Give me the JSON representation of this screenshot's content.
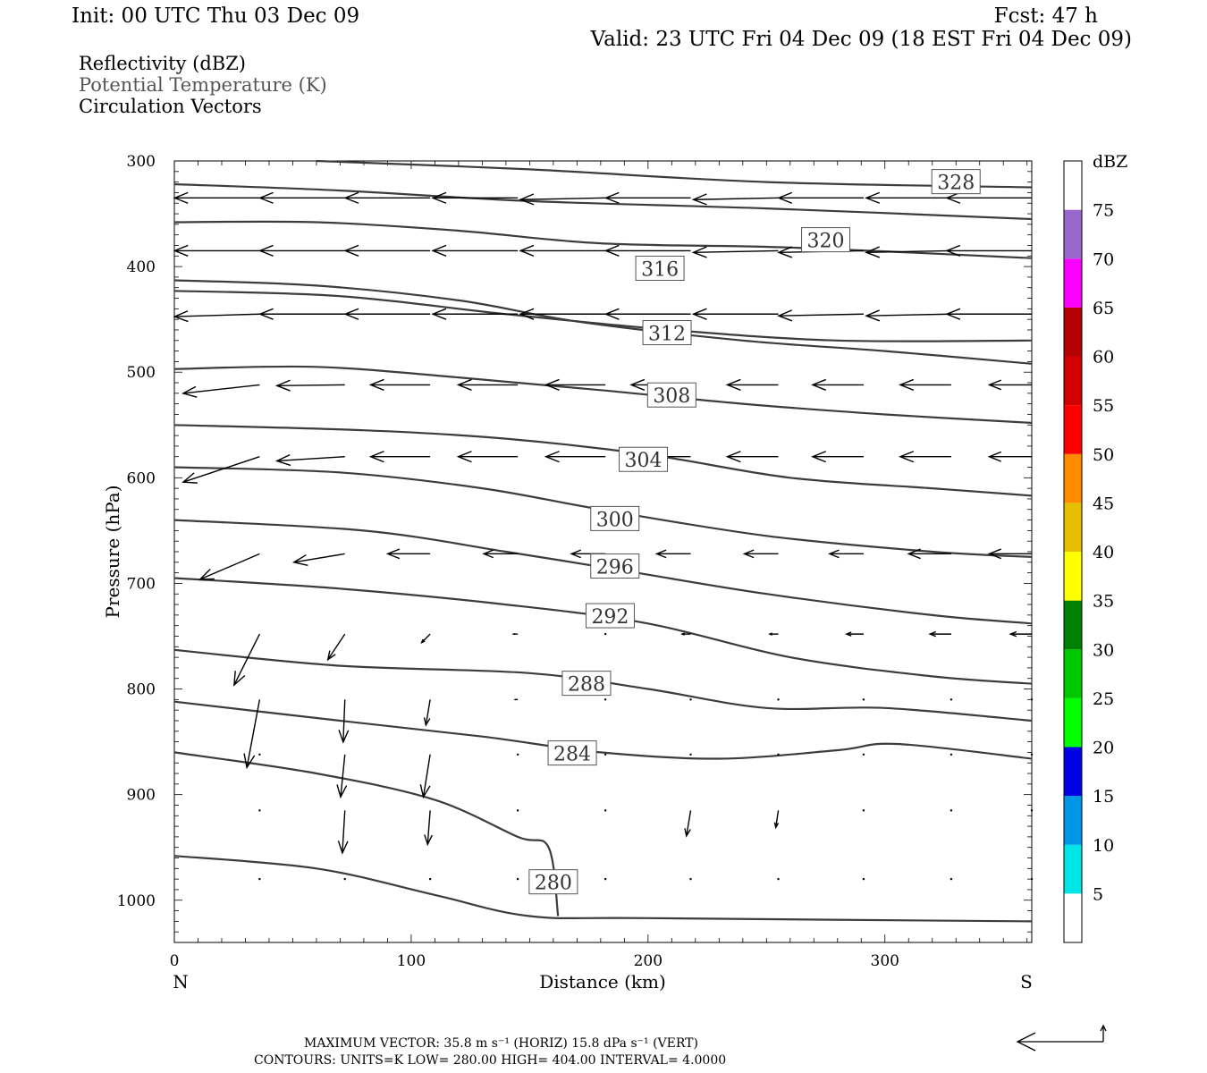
{
  "header": {
    "init": "Init: 00 UTC Thu 03 Dec 09",
    "fcst": "Fcst:   47 h",
    "valid": "Valid: 23 UTC Fri 04 Dec 09 (18 EST Fri 04 Dec 09)",
    "fields": [
      "Reflectivity (dBZ)",
      "Potential Temperature (K)",
      "Circulation Vectors"
    ]
  },
  "footer": {
    "max_vector": "MAXIMUM VECTOR:  35.8 m s⁻¹ (HORIZ)          15.8 dPa s⁻¹ (VERT)",
    "contours": "CONTOURS:  UNITS=K  LOW=  280.00        HIGH=  404.00        INTERVAL=    4.0000"
  },
  "colors": {
    "contour": "#3c3c3c",
    "vector": "#000000"
  },
  "chart_data": {
    "type": "cross-section",
    "xlabel": "Distance (km)",
    "ylabel": "Pressure (hPa)",
    "xlim": [
      0,
      362
    ],
    "ylim": [
      300,
      1040
    ],
    "x_ticks": [
      0,
      100,
      200,
      300
    ],
    "y_ticks": [
      300,
      400,
      500,
      600,
      700,
      800,
      900,
      1000
    ],
    "x_end_labels": {
      "left": "N",
      "right": "S"
    },
    "contours": [
      {
        "level": "328",
        "label_at": [
          330,
          320
        ],
        "points": [
          [
            60,
            300
          ],
          [
            150,
            308
          ],
          [
            250,
            320
          ],
          [
            362,
            325
          ]
        ]
      },
      {
        "level": "324",
        "label_at": null,
        "points": [
          [
            0,
            322
          ],
          [
            70,
            328
          ],
          [
            150,
            338
          ],
          [
            250,
            345
          ],
          [
            362,
            355
          ]
        ]
      },
      {
        "level": "320",
        "label_at": [
          275,
          375
        ],
        "points": [
          [
            0,
            358
          ],
          [
            60,
            358
          ],
          [
            120,
            366
          ],
          [
            180,
            378
          ],
          [
            260,
            382
          ],
          [
            362,
            392
          ]
        ]
      },
      {
        "level": "316",
        "label_at": [
          205,
          402
        ],
        "points": [
          [
            0,
            413
          ],
          [
            60,
            418
          ],
          [
            120,
            432
          ],
          [
            170,
            452
          ],
          [
            240,
            470
          ],
          [
            300,
            480
          ],
          [
            362,
            492
          ]
        ]
      },
      {
        "level": "312",
        "label_at": [
          208,
          463
        ],
        "points": [
          [
            0,
            423
          ],
          [
            70,
            428
          ],
          [
            140,
            445
          ],
          [
            210,
            460
          ],
          [
            280,
            470
          ],
          [
            362,
            470
          ]
        ]
      },
      {
        "level": "308",
        "label_at": [
          210,
          522
        ],
        "points": [
          [
            0,
            497
          ],
          [
            60,
            495
          ],
          [
            120,
            505
          ],
          [
            180,
            517
          ],
          [
            240,
            530
          ],
          [
            300,
            540
          ],
          [
            362,
            548
          ]
        ]
      },
      {
        "level": "304",
        "label_at": [
          198,
          583
        ],
        "points": [
          [
            0,
            550
          ],
          [
            80,
            555
          ],
          [
            140,
            563
          ],
          [
            200,
            578
          ],
          [
            260,
            600
          ],
          [
            320,
            610
          ],
          [
            362,
            617
          ]
        ]
      },
      {
        "level": "300",
        "label_at": [
          186,
          639
        ],
        "points": [
          [
            0,
            590
          ],
          [
            70,
            595
          ],
          [
            130,
            610
          ],
          [
            180,
            630
          ],
          [
            250,
            655
          ],
          [
            320,
            670
          ],
          [
            362,
            675
          ]
        ]
      },
      {
        "level": "296",
        "label_at": [
          186,
          684
        ],
        "points": [
          [
            0,
            640
          ],
          [
            80,
            650
          ],
          [
            140,
            670
          ],
          [
            190,
            688
          ],
          [
            250,
            710
          ],
          [
            320,
            730
          ],
          [
            362,
            738
          ]
        ]
      },
      {
        "level": "292",
        "label_at": [
          184,
          731
        ],
        "points": [
          [
            0,
            695
          ],
          [
            70,
            705
          ],
          [
            140,
            720
          ],
          [
            200,
            738
          ],
          [
            260,
            770
          ],
          [
            320,
            788
          ],
          [
            362,
            795
          ]
        ]
      },
      {
        "level": "288",
        "label_at": [
          174,
          795
        ],
        "points": [
          [
            0,
            763
          ],
          [
            70,
            778
          ],
          [
            150,
            785
          ],
          [
            200,
            800
          ],
          [
            250,
            818
          ],
          [
            300,
            818
          ],
          [
            362,
            830
          ]
        ]
      },
      {
        "level": "284",
        "label_at": [
          168,
          861
        ],
        "points": [
          [
            0,
            812
          ],
          [
            70,
            830
          ],
          [
            130,
            845
          ],
          [
            180,
            860
          ],
          [
            230,
            866
          ],
          [
            280,
            858
          ],
          [
            305,
            852
          ],
          [
            362,
            866
          ]
        ]
      },
      {
        "level": "280",
        "label_at": [
          160,
          983
        ],
        "points": [
          [
            0,
            958
          ],
          [
            60,
            970
          ],
          [
            110,
            995
          ],
          [
            150,
            1015
          ],
          [
            200,
            1017
          ],
          [
            362,
            1020
          ]
        ]
      },
      {
        "level": "280-branch",
        "label_at": null,
        "points": [
          [
            0,
            860
          ],
          [
            60,
            880
          ],
          [
            110,
            905
          ],
          [
            145,
            940
          ],
          [
            158,
            950
          ],
          [
            162,
            1015
          ]
        ]
      }
    ],
    "vectors": [
      {
        "p": 335,
        "x": [
          36,
          72,
          108,
          145,
          182,
          218,
          255,
          291,
          328,
          362
        ],
        "u": [
          -1,
          -1,
          -1,
          -1,
          -1,
          -1,
          -1,
          -1,
          -1,
          -1
        ],
        "w": [
          0,
          0,
          0,
          0,
          0.02,
          0,
          0.02,
          0,
          0,
          0
        ]
      },
      {
        "p": 385,
        "x": [
          36,
          72,
          108,
          145,
          182,
          218,
          255,
          291,
          328,
          362
        ],
        "u": [
          -1,
          -1,
          -1,
          -1,
          -1,
          -1,
          -1,
          -1,
          -1,
          -1
        ],
        "w": [
          0,
          0,
          0,
          0,
          0,
          0,
          0.02,
          0.02,
          0.02,
          0
        ]
      },
      {
        "p": 445,
        "x": [
          36,
          72,
          108,
          145,
          182,
          218,
          255,
          291,
          328,
          362
        ],
        "u": [
          -1,
          -1,
          -1,
          -1,
          -1,
          -1,
          -1,
          -1,
          -1,
          -1
        ],
        "w": [
          0.03,
          0,
          0,
          0,
          0,
          0,
          0,
          0.02,
          0.02,
          0
        ]
      },
      {
        "p": 512,
        "x": [
          36,
          72,
          108,
          145,
          182,
          218,
          255,
          291,
          328,
          362
        ],
        "u": [
          -0.9,
          -0.8,
          -0.7,
          -0.7,
          -0.7,
          -0.7,
          -0.6,
          -0.6,
          -0.6,
          -0.5
        ],
        "w": [
          0.1,
          0.01,
          0,
          0,
          0,
          0,
          0,
          0,
          0,
          0
        ]
      },
      {
        "p": 580,
        "x": [
          36,
          72,
          108,
          145,
          182,
          218,
          255,
          291,
          328,
          362
        ],
        "u": [
          -0.9,
          -0.8,
          -0.7,
          -0.7,
          -0.7,
          -0.6,
          -0.6,
          -0.6,
          -0.6,
          -0.5
        ],
        "w": [
          0.3,
          0.05,
          0,
          0,
          0,
          0,
          0,
          0,
          0,
          0
        ]
      },
      {
        "p": 672,
        "x": [
          36,
          72,
          108,
          145,
          182,
          218,
          255,
          291,
          328,
          362
        ],
        "u": [
          -0.7,
          -0.6,
          -0.5,
          -0.4,
          -0.4,
          -0.4,
          -0.4,
          -0.4,
          -0.5,
          -0.5
        ],
        "w": [
          0.3,
          0.1,
          0,
          0,
          0,
          0,
          0,
          0,
          0,
          0
        ]
      },
      {
        "p": 748,
        "x": [
          36,
          72,
          108,
          145,
          182,
          218,
          255,
          291,
          328,
          362
        ],
        "u": [
          -0.3,
          -0.2,
          -0.1,
          -0.05,
          -0.02,
          -0.1,
          -0.1,
          -0.2,
          -0.25,
          -0.25
        ],
        "w": [
          0.6,
          0.3,
          0.1,
          0,
          0,
          0,
          0,
          0,
          0,
          0
        ]
      },
      {
        "p": 810,
        "x": [
          36,
          72,
          108,
          145,
          182,
          218,
          255,
          291,
          328,
          362
        ],
        "u": [
          -0.15,
          -0.02,
          -0.05,
          -0.03,
          0,
          0,
          0,
          0,
          0,
          0
        ],
        "w": [
          0.8,
          0.5,
          0.3,
          0,
          0,
          0,
          0,
          0,
          0,
          0
        ]
      },
      {
        "p": 862,
        "x": [
          36,
          72,
          108,
          145,
          182,
          218,
          255,
          291,
          328,
          362
        ],
        "u": [
          0,
          -0.05,
          -0.08,
          0,
          0,
          0,
          0,
          0,
          0,
          0
        ],
        "w": [
          0,
          0.5,
          0.5,
          0,
          0,
          0,
          0,
          0,
          0,
          0
        ]
      },
      {
        "p": 915,
        "x": [
          36,
          72,
          108,
          145,
          182,
          218,
          255,
          291,
          328,
          362
        ],
        "u": [
          0,
          -0.03,
          -0.03,
          0,
          0,
          -0.05,
          -0.03,
          0,
          0,
          0
        ],
        "w": [
          0,
          0.5,
          0.4,
          0,
          0,
          0.3,
          0.2,
          0,
          0,
          0
        ]
      },
      {
        "p": 980,
        "x": [
          36,
          72,
          108,
          145,
          182,
          218,
          255,
          291,
          328,
          362
        ],
        "u": [
          0,
          0,
          0,
          0,
          0,
          0,
          0,
          0,
          0,
          0
        ],
        "w": [
          0,
          0,
          0,
          0,
          0,
          0,
          0,
          0,
          0,
          0
        ]
      }
    ],
    "colorbar": {
      "title": "dBZ",
      "levels": [
        "5",
        "10",
        "15",
        "20",
        "25",
        "30",
        "35",
        "40",
        "45",
        "50",
        "55",
        "60",
        "65",
        "70",
        "75"
      ],
      "colors": [
        "#ffffff",
        "#00e5e5",
        "#0096e6",
        "#0000e6",
        "#00ff00",
        "#00c800",
        "#008000",
        "#ffff00",
        "#e6c000",
        "#ff8c00",
        "#ff0000",
        "#d20000",
        "#b40000",
        "#ff00ff",
        "#9966cc",
        "#ffffff"
      ]
    }
  }
}
